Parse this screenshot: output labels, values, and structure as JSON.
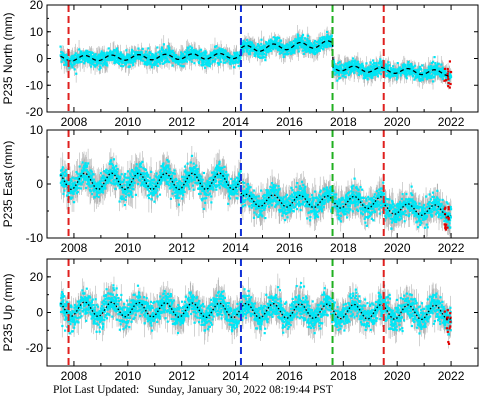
{
  "footer": {
    "label": "Plot Last Updated:",
    "timestamp": "Sunday, January 30, 2022 08:19:44 PST"
  },
  "colors": {
    "daily": "#00e6f5",
    "error_bars": "#b4b4b4",
    "model": "#000000",
    "outlier": "#e00000",
    "event_red": "#e0201e",
    "event_blue": "#1030d8",
    "event_green": "#20b020"
  },
  "chart_data": [
    {
      "type": "scatter",
      "ylabel": "P235 North (mm)",
      "xlim": [
        2007.0,
        2023.0
      ],
      "ylim": [
        -20,
        20
      ],
      "yticks": [
        -20,
        -10,
        0,
        10,
        20
      ],
      "xticks": [
        2008,
        2010,
        2012,
        2014,
        2016,
        2018,
        2020,
        2022
      ],
      "grid": false,
      "model_line": "dashed",
      "segments": [
        {
          "x": [
            2007.5,
            2014.2
          ],
          "mean": [
            0.0,
            1.0
          ],
          "amplitude": 1.0
        },
        {
          "x": [
            2014.2,
            2017.6
          ],
          "mean": [
            3.5,
            5.5
          ],
          "amplitude": 1.2
        },
        {
          "x": [
            2017.6,
            2022.0
          ],
          "mean": [
            -3.5,
            -5.5
          ],
          "amplitude": 1.0
        }
      ],
      "scatter_spread": 2.2,
      "error_spread": 4.5,
      "events": [
        {
          "year": 2007.8,
          "color": "red"
        },
        {
          "year": 2014.2,
          "color": "blue"
        },
        {
          "year": 2017.6,
          "color": "green"
        },
        {
          "year": 2019.5,
          "color": "red"
        }
      ]
    },
    {
      "type": "scatter",
      "ylabel": "P235 East (mm)",
      "xlim": [
        2007.0,
        2023.0
      ],
      "ylim": [
        -10,
        10
      ],
      "yticks": [
        -10,
        0,
        10
      ],
      "xticks": [
        2008,
        2010,
        2012,
        2014,
        2016,
        2018,
        2020,
        2022
      ],
      "grid": false,
      "model_line": "dotted",
      "segments": [
        {
          "x": [
            2007.5,
            2014.2
          ],
          "mean": [
            0.5,
            0.5
          ],
          "amplitude": 1.5
        },
        {
          "x": [
            2014.2,
            2019.5
          ],
          "mean": [
            -3.0,
            -3.5
          ],
          "amplitude": 1.1
        },
        {
          "x": [
            2019.5,
            2022.0
          ],
          "mean": [
            -4.5,
            -5.0
          ],
          "amplitude": 1.0
        }
      ],
      "scatter_spread": 1.8,
      "error_spread": 3.5,
      "events": [
        {
          "year": 2007.8,
          "color": "red"
        },
        {
          "year": 2014.2,
          "color": "blue"
        },
        {
          "year": 2017.6,
          "color": "green"
        },
        {
          "year": 2019.5,
          "color": "red"
        }
      ]
    },
    {
      "type": "scatter",
      "ylabel": "P235 Up (mm)",
      "xlim": [
        2007.0,
        2023.0
      ],
      "ylim": [
        -30,
        30
      ],
      "yticks": [
        -20,
        0,
        20
      ],
      "xticks": [
        2008,
        2010,
        2012,
        2014,
        2016,
        2018,
        2020,
        2022
      ],
      "grid": false,
      "model_line": "dotted",
      "segments": [
        {
          "x": [
            2007.5,
            2022.0
          ],
          "mean": [
            2.0,
            0.0
          ],
          "amplitude": 4.0
        }
      ],
      "scatter_spread": 6.0,
      "error_spread": 10.0,
      "events": [
        {
          "year": 2007.8,
          "color": "red"
        },
        {
          "year": 2014.2,
          "color": "blue"
        },
        {
          "year": 2017.6,
          "color": "green"
        },
        {
          "year": 2019.5,
          "color": "red"
        }
      ]
    }
  ]
}
